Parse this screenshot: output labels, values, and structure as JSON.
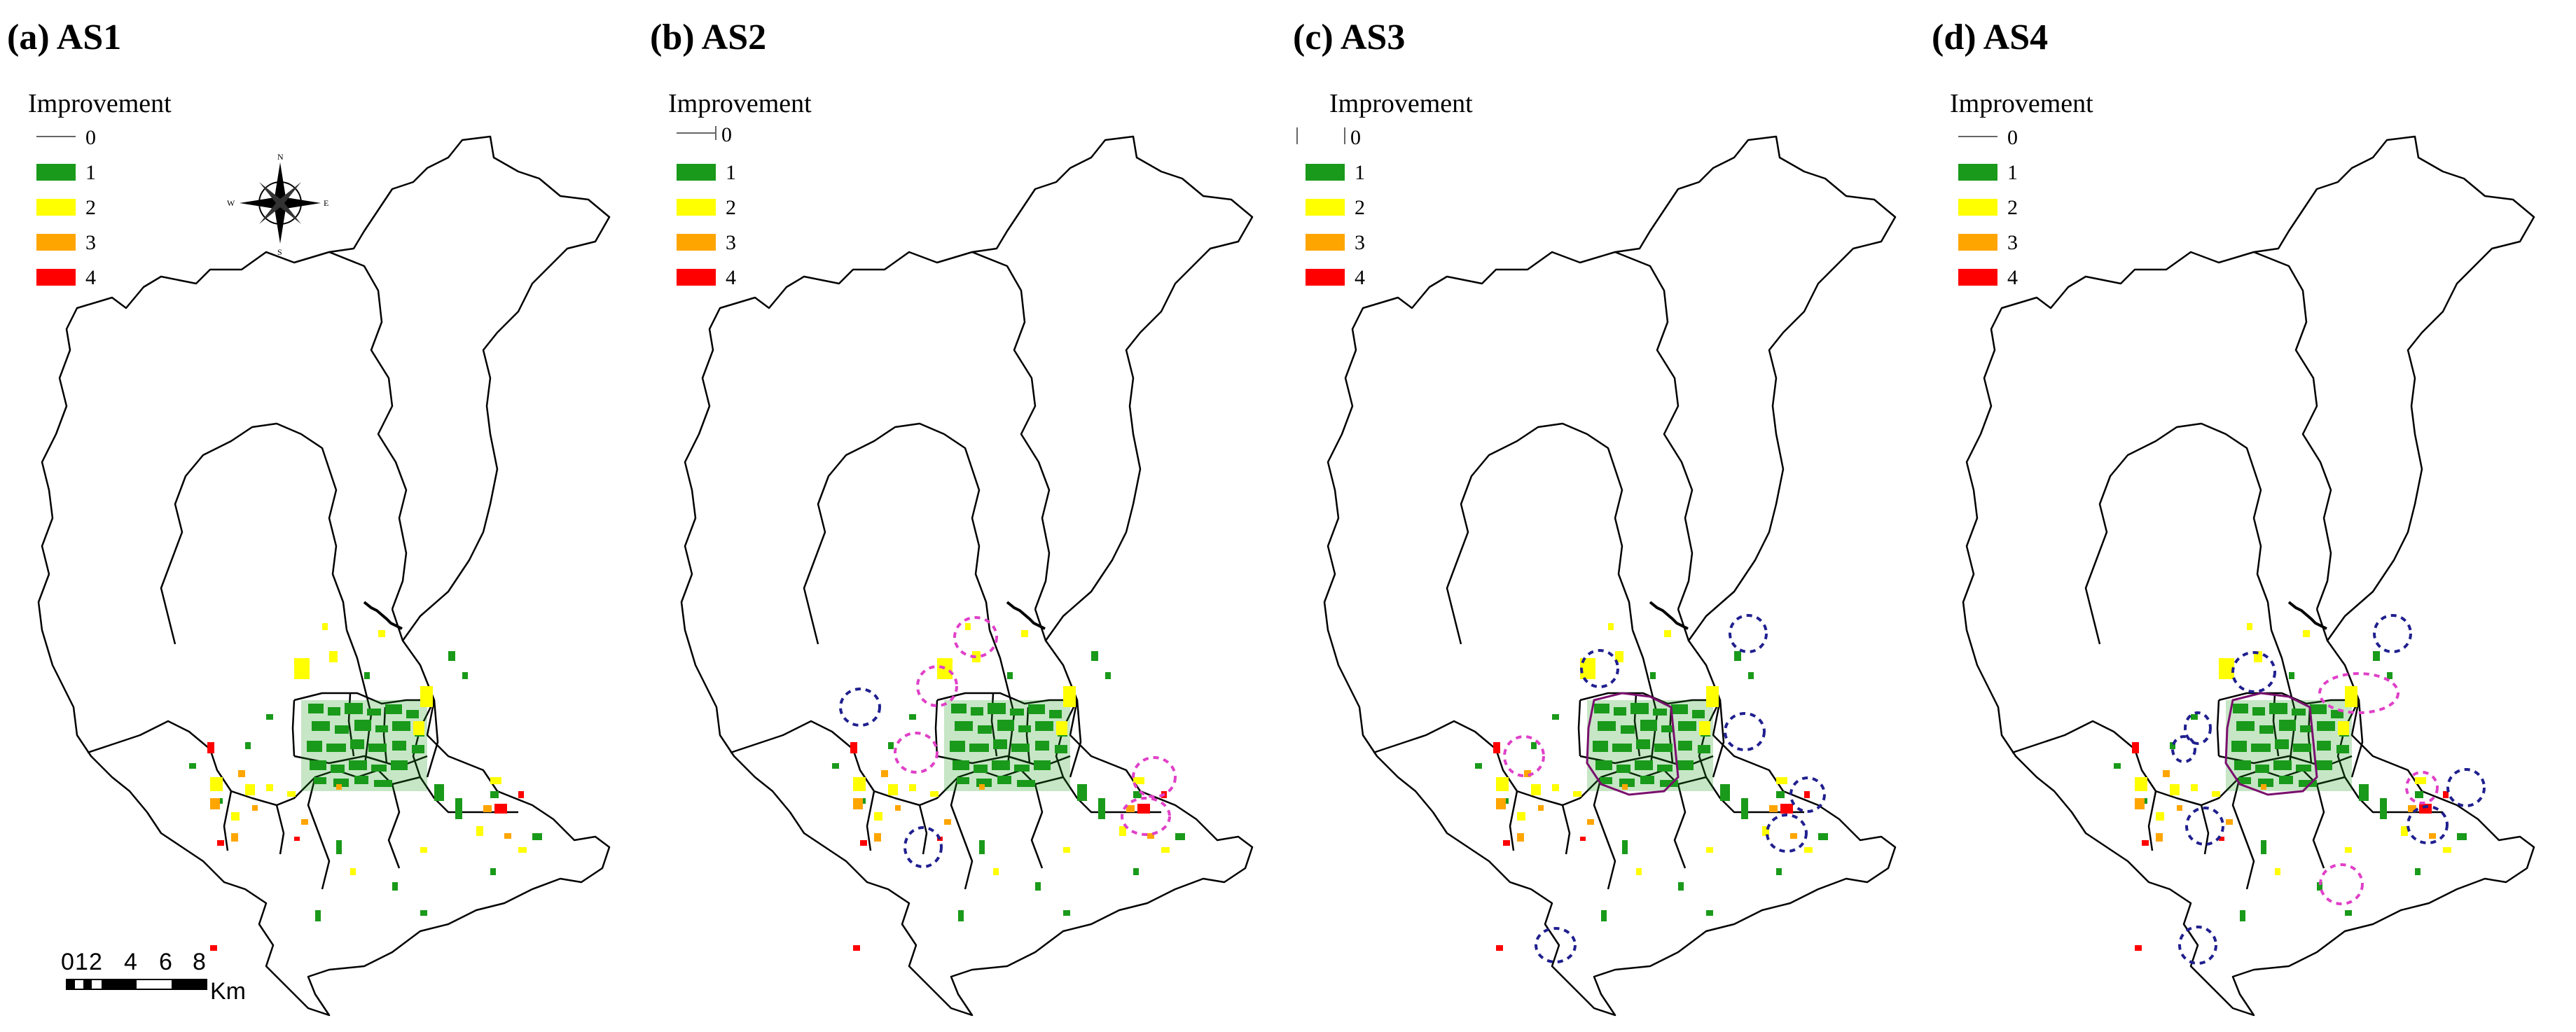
{
  "figure": {
    "panels": [
      {
        "label": "(a) AS1",
        "legend_title": "Improvement"
      },
      {
        "label": "(b) AS2",
        "legend_title": "Improvement"
      },
      {
        "label": "(c) AS3",
        "legend_title": "Improvement"
      },
      {
        "label": "(d) AS4",
        "legend_title": "Improvement"
      }
    ],
    "legend": {
      "classes": [
        {
          "value": "0",
          "color": "#ffffff"
        },
        {
          "value": "1",
          "color": "#1a9a1a"
        },
        {
          "value": "2",
          "color": "#ffff00"
        },
        {
          "value": "3",
          "color": "#ffa500"
        },
        {
          "value": "4",
          "color": "#ff0000"
        }
      ]
    },
    "highlight_colors": {
      "navy": "#1f1f8f",
      "magenta": "#e040c8",
      "outline": "#7a0f6e"
    },
    "scale_bar": {
      "ticks": [
        "0",
        "1",
        "2",
        "4",
        "6",
        "8"
      ],
      "unit": "Km"
    },
    "compass": {
      "n": "N",
      "s": "S",
      "e": "E",
      "w": "W"
    }
  }
}
